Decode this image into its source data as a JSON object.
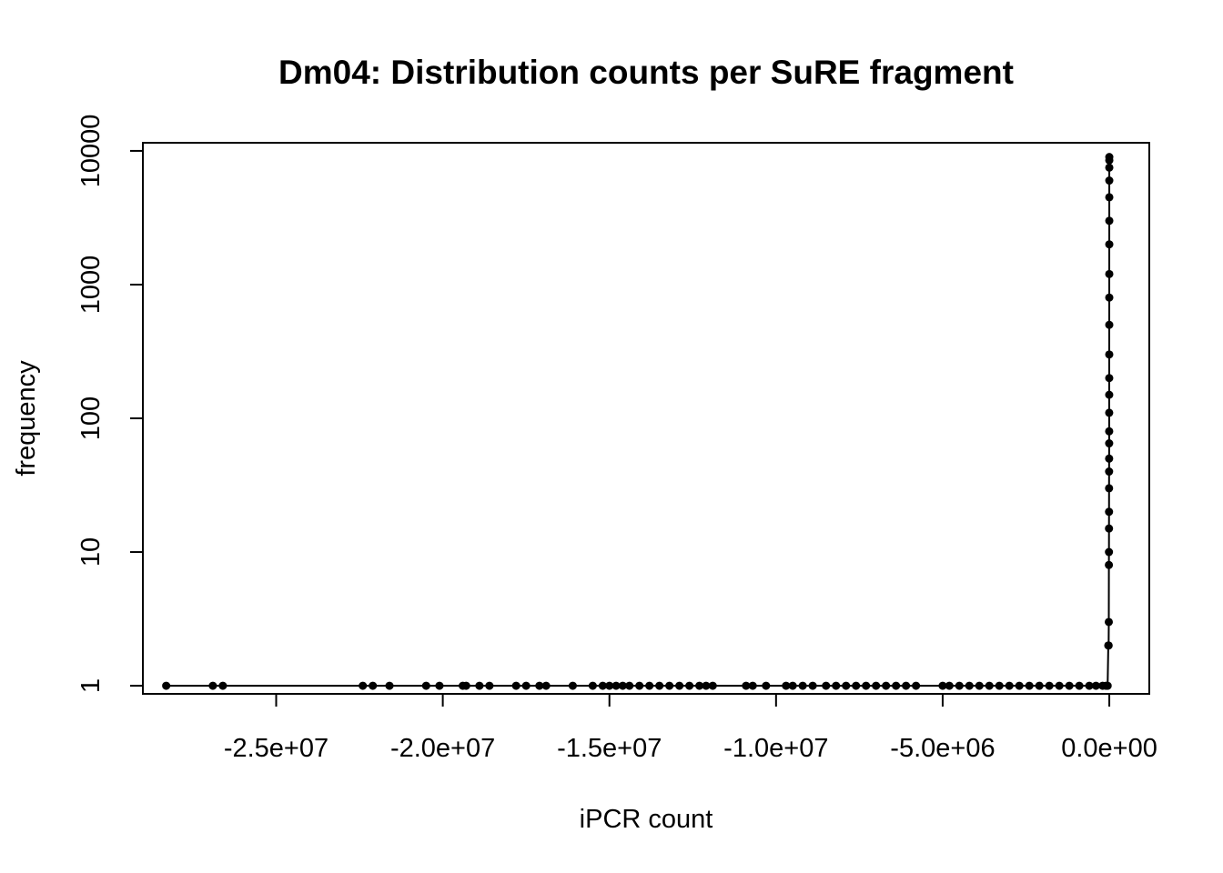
{
  "chart_data": {
    "type": "scatter",
    "title": "Dm04: Distribution counts per SuRE fragment",
    "xlabel": "iPCR count",
    "ylabel": "frequency",
    "xlim": [
      -29000000,
      1200000
    ],
    "ylim": [
      0.87,
      11500
    ],
    "y_scale": "log",
    "connect_points": true,
    "grid": false,
    "legend": "none",
    "marker_color": "#000000",
    "x_ticks": [
      {
        "value": -25000000,
        "label": "-2.5e+07"
      },
      {
        "value": -20000000,
        "label": "-2.0e+07"
      },
      {
        "value": -15000000,
        "label": "-1.5e+07"
      },
      {
        "value": -10000000,
        "label": "-1.0e+07"
      },
      {
        "value": -5000000,
        "label": "-5.0e+06"
      },
      {
        "value": 0,
        "label": "0.0e+00"
      }
    ],
    "y_ticks": [
      {
        "value": 1,
        "label": "1"
      },
      {
        "value": 10,
        "label": "10"
      },
      {
        "value": 100,
        "label": "100"
      },
      {
        "value": 1000,
        "label": "1000"
      },
      {
        "value": 10000,
        "label": "10000"
      }
    ],
    "series": [
      {
        "values_note_excluded": false,
        "points": [
          [
            -28300000,
            1
          ],
          [
            -26900000,
            1
          ],
          [
            -26600000,
            1
          ],
          [
            -22400000,
            1
          ],
          [
            -22100000,
            1
          ],
          [
            -21600000,
            1
          ],
          [
            -20500000,
            1
          ],
          [
            -20100000,
            1
          ],
          [
            -19400000,
            1
          ],
          [
            -19300000,
            1
          ],
          [
            -18900000,
            1
          ],
          [
            -18600000,
            1
          ],
          [
            -17800000,
            1
          ],
          [
            -17500000,
            1
          ],
          [
            -17100000,
            1
          ],
          [
            -16900000,
            1
          ],
          [
            -16100000,
            1
          ],
          [
            -15500000,
            1
          ],
          [
            -15200000,
            1
          ],
          [
            -15000000,
            1
          ],
          [
            -14800000,
            1
          ],
          [
            -14600000,
            1
          ],
          [
            -14400000,
            1
          ],
          [
            -14100000,
            1
          ],
          [
            -13800000,
            1
          ],
          [
            -13500000,
            1
          ],
          [
            -13200000,
            1
          ],
          [
            -12900000,
            1
          ],
          [
            -12600000,
            1
          ],
          [
            -12300000,
            1
          ],
          [
            -12100000,
            1
          ],
          [
            -11900000,
            1
          ],
          [
            -10900000,
            1
          ],
          [
            -10700000,
            1
          ],
          [
            -10300000,
            1
          ],
          [
            -9700000,
            1
          ],
          [
            -9500000,
            1
          ],
          [
            -9200000,
            1
          ],
          [
            -8900000,
            1
          ],
          [
            -8500000,
            1
          ],
          [
            -8200000,
            1
          ],
          [
            -7900000,
            1
          ],
          [
            -7600000,
            1
          ],
          [
            -7300000,
            1
          ],
          [
            -7000000,
            1
          ],
          [
            -6700000,
            1
          ],
          [
            -6400000,
            1
          ],
          [
            -6100000,
            1
          ],
          [
            -5800000,
            1
          ],
          [
            -5000000,
            1
          ],
          [
            -4800000,
            1
          ],
          [
            -4500000,
            1
          ],
          [
            -4200000,
            1
          ],
          [
            -3900000,
            1
          ],
          [
            -3600000,
            1
          ],
          [
            -3300000,
            1
          ],
          [
            -3000000,
            1
          ],
          [
            -2700000,
            1
          ],
          [
            -2400000,
            1
          ],
          [
            -2100000,
            1
          ],
          [
            -1800000,
            1
          ],
          [
            -1500000,
            1
          ],
          [
            -1200000,
            1
          ],
          [
            -900000,
            1
          ],
          [
            -600000,
            1
          ],
          [
            -400000,
            1
          ],
          [
            -200000,
            1
          ],
          [
            -100000,
            1
          ],
          [
            -50000,
            1
          ],
          [
            -30000,
            2
          ],
          [
            -20000,
            2
          ],
          [
            -15000,
            3
          ],
          [
            -12000,
            8
          ],
          [
            -10000,
            10
          ],
          [
            -9000,
            15
          ],
          [
            -8000,
            20
          ],
          [
            -7000,
            30
          ],
          [
            -6000,
            40
          ],
          [
            -5000,
            50
          ],
          [
            -4000,
            65
          ],
          [
            -3500,
            80
          ],
          [
            -3000,
            110
          ],
          [
            -2500,
            150
          ],
          [
            -2000,
            200
          ],
          [
            -1500,
            300
          ],
          [
            -1000,
            500
          ],
          [
            -700,
            800
          ],
          [
            -500,
            1200
          ],
          [
            -300,
            2000
          ],
          [
            -200,
            3000
          ],
          [
            -100,
            4500
          ],
          [
            -60,
            6000
          ],
          [
            -30,
            7500
          ],
          [
            -10,
            8500
          ],
          [
            0,
            9000
          ]
        ]
      }
    ]
  }
}
